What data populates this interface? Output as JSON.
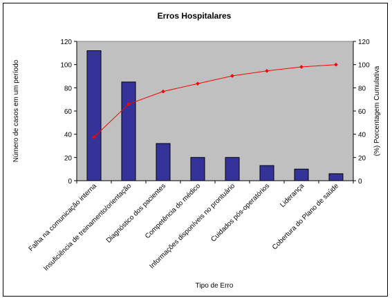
{
  "chart_data": {
    "type": "bar",
    "title": "Erros Hospitalares",
    "xlabel": "Tipo de Erro",
    "ylabel": "Número de casos em um período",
    "y2label": "(%) Porcentagem Cumulativa",
    "ylim": [
      0,
      120
    ],
    "y2lim": [
      0,
      120
    ],
    "yticks": [
      0,
      20,
      40,
      60,
      80,
      100,
      120
    ],
    "y2ticks": [
      0,
      20,
      40,
      60,
      80,
      100,
      120
    ],
    "grid": false,
    "legend": "none",
    "plot_background": "#c0c0c0",
    "categories": [
      "Falha na comunicação interna",
      "Insuficiência de treinamento/orientação",
      "Diagnóstico dos pacientes",
      "Competência do médico",
      "Informações disponíveis no prontuário",
      "Cuidados pós-operatórios",
      "Liderança",
      "Cobertura do Plano de saúde"
    ],
    "series": [
      {
        "type": "bar",
        "axis": "left",
        "color": "#333399",
        "values": [
          112,
          85,
          32,
          20,
          20,
          13,
          10,
          6
        ]
      },
      {
        "type": "line",
        "axis": "right",
        "color": "#ff0000",
        "values": [
          37.5,
          66,
          76.9,
          83.6,
          90.3,
          94.6,
          98,
          100
        ]
      }
    ]
  }
}
